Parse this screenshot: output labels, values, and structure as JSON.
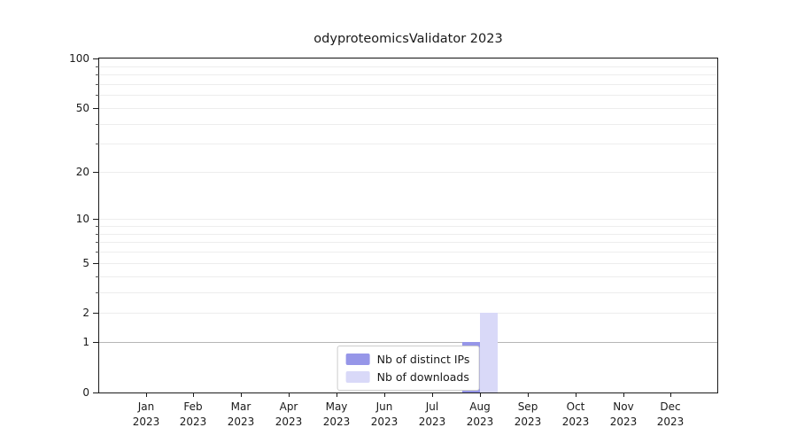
{
  "title": "odyproteomicsValidator 2023",
  "chart_data": {
    "type": "bar",
    "title": "odyproteomicsValidator 2023",
    "x_categories": [
      "Jan",
      "Feb",
      "Mar",
      "Apr",
      "May",
      "Jun",
      "Jul",
      "Aug",
      "Sep",
      "Oct",
      "Nov",
      "Dec"
    ],
    "x_year": "2023",
    "y_scale": "log1p",
    "ylim": [
      0,
      100
    ],
    "y_major_ticks": [
      0,
      1,
      2,
      5,
      10,
      20,
      50,
      100
    ],
    "y_minor_ticks": [
      3,
      4,
      6,
      7,
      8,
      9,
      30,
      40,
      60,
      70,
      80,
      90
    ],
    "grid": true,
    "legend_position": "lower center",
    "series": [
      {
        "name": "Nb of distinct IPs",
        "color": "#9696e8",
        "values": [
          0,
          0,
          0,
          0,
          0,
          0,
          0,
          1,
          0,
          0,
          0,
          0
        ]
      },
      {
        "name": "Nb of downloads",
        "color": "#d9d9f8",
        "values": [
          0,
          0,
          0,
          0,
          0,
          0,
          0,
          2,
          0,
          0,
          0,
          0
        ]
      }
    ]
  },
  "colors": {
    "background": "#ffffff",
    "axis": "#1a1a1a",
    "grid_minor": "#ededed",
    "grid_emphasis": "#b5b5b5",
    "legend_border": "#cccccc"
  }
}
